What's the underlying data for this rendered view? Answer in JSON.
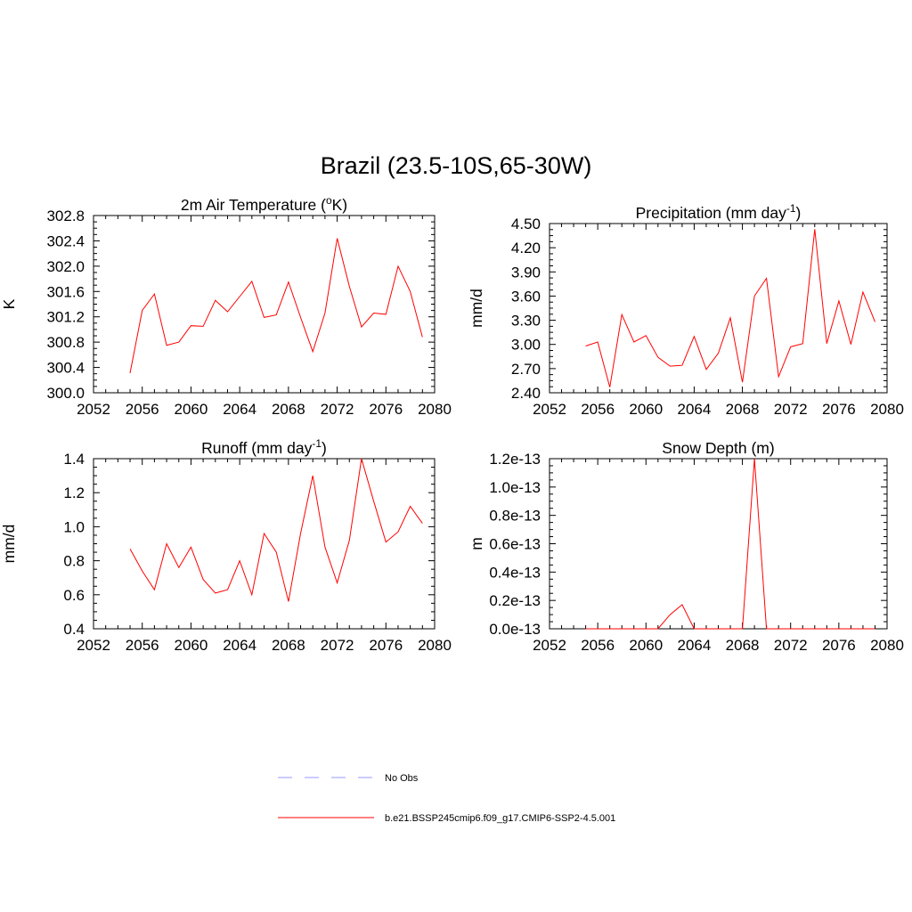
{
  "figure_title": "Brazil (23.5-10S,65-30W)",
  "line_color": "#ff0000",
  "obs_color": "#9999ff",
  "legend": {
    "entries": [
      {
        "label": "No Obs",
        "style": "dashed",
        "color": "#9999ff"
      },
      {
        "label": "b.e21.BSSP245cmip6.f09_g17.CMIP6-SSP2-4.5.001",
        "style": "solid",
        "color": "#ff0000"
      }
    ]
  },
  "chart_data": [
    {
      "type": "line",
      "title": "2m Air Temperature (oK)",
      "title_parts": {
        "pre": "2m Air Temperature (",
        "sup": "o",
        "post": "K)"
      },
      "ylabel": "K",
      "xlim": [
        2052,
        2080
      ],
      "ylim": [
        300.0,
        302.8
      ],
      "xticks": [
        2052,
        2056,
        2060,
        2064,
        2068,
        2072,
        2076,
        2080
      ],
      "yticks": [
        "300.0",
        "300.4",
        "300.8",
        "301.2",
        "301.6",
        "302.0",
        "302.4",
        "302.8"
      ],
      "x": [
        2055,
        2056,
        2057,
        2058,
        2059,
        2060,
        2061,
        2062,
        2063,
        2064,
        2065,
        2066,
        2067,
        2068,
        2069,
        2070,
        2071,
        2072,
        2073,
        2074,
        2075,
        2076,
        2077,
        2078,
        2079
      ],
      "series": [
        {
          "values": [
            300.31,
            301.3,
            301.56,
            300.75,
            300.8,
            301.06,
            301.05,
            301.46,
            301.28,
            301.52,
            301.76,
            301.19,
            301.23,
            301.75,
            301.19,
            300.65,
            301.26,
            302.44,
            301.68,
            301.04,
            301.26,
            301.24,
            302.0,
            301.6,
            300.88
          ]
        }
      ]
    },
    {
      "type": "line",
      "title": "Precipitation (mm day-1)",
      "title_parts": {
        "pre": "Precipitation (mm day",
        "sup": "-1",
        "post": ")"
      },
      "ylabel": "mm/d",
      "xlim": [
        2052,
        2080
      ],
      "ylim": [
        2.4,
        4.5
      ],
      "xticks": [
        2052,
        2056,
        2060,
        2064,
        2068,
        2072,
        2076,
        2080
      ],
      "yticks": [
        "2.40",
        "2.70",
        "3.00",
        "3.30",
        "3.60",
        "3.90",
        "4.20",
        "4.50"
      ],
      "x": [
        2055,
        2056,
        2057,
        2058,
        2059,
        2060,
        2061,
        2062,
        2063,
        2064,
        2065,
        2066,
        2067,
        2068,
        2069,
        2070,
        2071,
        2072,
        2073,
        2074,
        2075,
        2076,
        2077,
        2078,
        2079
      ],
      "series": [
        {
          "values": [
            2.98,
            3.03,
            2.47,
            3.37,
            3.03,
            3.11,
            2.84,
            2.73,
            2.74,
            3.1,
            2.69,
            2.89,
            3.33,
            2.53,
            3.6,
            3.82,
            2.6,
            2.97,
            3.01,
            4.43,
            3.01,
            3.54,
            3.0,
            3.65,
            3.28
          ]
        }
      ]
    },
    {
      "type": "line",
      "title": "Runoff (mm day-1)",
      "title_parts": {
        "pre": "Runoff (mm day",
        "sup": "-1",
        "post": ")"
      },
      "ylabel": "mm/d",
      "xlim": [
        2052,
        2080
      ],
      "ylim": [
        0.4,
        1.4
      ],
      "xticks": [
        2052,
        2056,
        2060,
        2064,
        2068,
        2072,
        2076,
        2080
      ],
      "yticks": [
        "0.4",
        "0.6",
        "0.8",
        "1.0",
        "1.2",
        "1.4"
      ],
      "x": [
        2055,
        2056,
        2057,
        2058,
        2059,
        2060,
        2061,
        2062,
        2063,
        2064,
        2065,
        2066,
        2067,
        2068,
        2069,
        2070,
        2071,
        2072,
        2073,
        2074,
        2075,
        2076,
        2077,
        2078,
        2079
      ],
      "series": [
        {
          "values": [
            0.87,
            0.74,
            0.63,
            0.9,
            0.76,
            0.88,
            0.69,
            0.61,
            0.63,
            0.8,
            0.6,
            0.96,
            0.85,
            0.56,
            0.96,
            1.3,
            0.88,
            0.67,
            0.92,
            1.4,
            1.15,
            0.91,
            0.97,
            1.12,
            1.02
          ]
        }
      ]
    },
    {
      "type": "line",
      "title": "Snow Depth (m)",
      "title_parts": {
        "pre": "Snow Depth (m)",
        "sup": "",
        "post": ""
      },
      "ylabel": "m",
      "xlim": [
        2052,
        2080
      ],
      "ylim": [
        0.0,
        1.2e-13
      ],
      "xticks": [
        2052,
        2056,
        2060,
        2064,
        2068,
        2072,
        2076,
        2080
      ],
      "yticks": [
        "0.0e-13",
        "0.2e-13",
        "0.4e-13",
        "0.6e-13",
        "0.8e-13",
        "1.0e-13",
        "1.2e-13"
      ],
      "x": [
        2055,
        2056,
        2057,
        2058,
        2059,
        2060,
        2061,
        2062,
        2063,
        2064,
        2065,
        2066,
        2067,
        2068,
        2069,
        2070,
        2071,
        2072,
        2073,
        2074,
        2075,
        2076,
        2077,
        2078,
        2079
      ],
      "series": [
        {
          "values": [
            0,
            0,
            0,
            0,
            0,
            0,
            0,
            1e-14,
            1.7e-14,
            0,
            0,
            0,
            0,
            0,
            1.2e-13,
            0,
            0,
            0,
            0,
            0,
            0,
            0,
            0,
            0,
            0
          ]
        }
      ]
    }
  ]
}
